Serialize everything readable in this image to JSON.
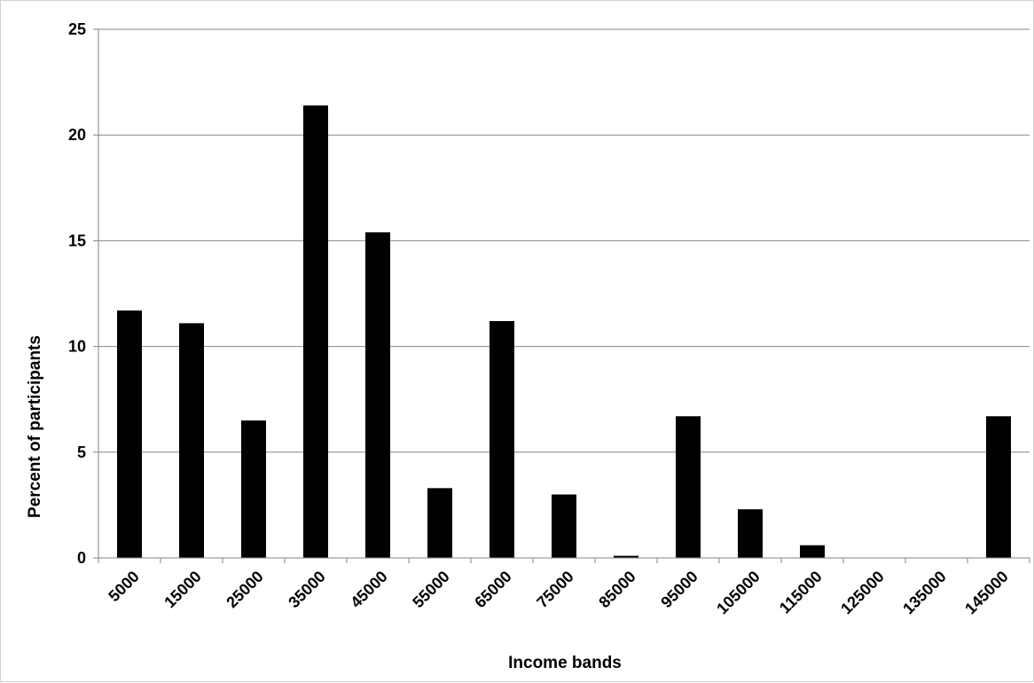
{
  "chart_data": {
    "type": "bar",
    "title": "",
    "xlabel": "Income bands",
    "ylabel": "Percent of participants",
    "categories": [
      "5000",
      "15000",
      "25000",
      "35000",
      "45000",
      "55000",
      "65000",
      "75000",
      "85000",
      "95000",
      "105000",
      "115000",
      "125000",
      "135000",
      "145000"
    ],
    "values": [
      11.7,
      11.1,
      6.5,
      21.4,
      15.4,
      3.3,
      11.2,
      3.0,
      0.1,
      6.7,
      2.3,
      0.6,
      0,
      0,
      6.7
    ],
    "ylim": [
      0,
      25
    ],
    "yticks": [
      "0",
      "5",
      "10",
      "15",
      "20",
      "25"
    ],
    "grid": true,
    "legend": "none",
    "bar_color": "#000000",
    "grid_color": "#868686"
  }
}
